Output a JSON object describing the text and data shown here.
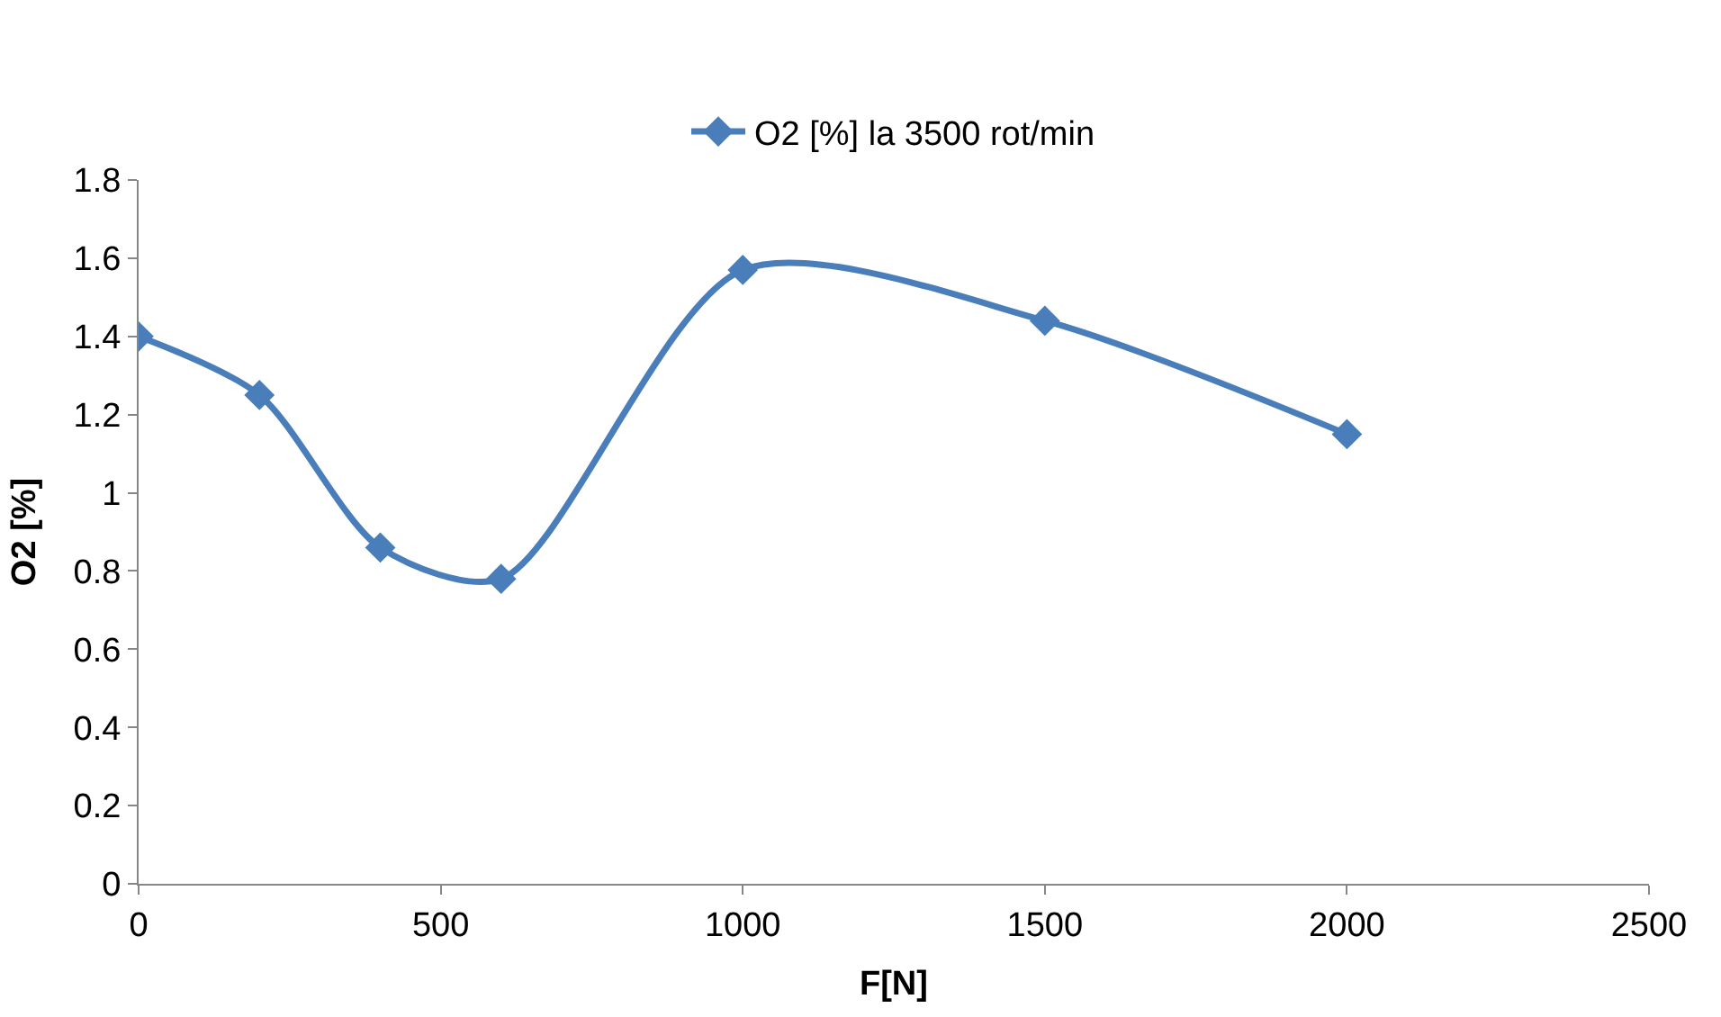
{
  "chart_data": {
    "type": "line",
    "xlabel": "F[N]",
    "ylabel": "O2 [%]",
    "x": [
      0,
      200,
      400,
      600,
      1000,
      1500,
      2000
    ],
    "series": [
      {
        "name": "O2 [%] la 3500 rot/min",
        "color": "#4a7ebb",
        "values": [
          1.4,
          1.25,
          0.86,
          0.78,
          1.57,
          1.44,
          1.15
        ]
      }
    ],
    "xlim": [
      0,
      2500
    ],
    "xticks": [
      0,
      500,
      1000,
      1500,
      2000,
      2500
    ],
    "ylim": [
      0,
      1.8
    ],
    "yticks": [
      0,
      {
        "value": 0.2,
        "label": "0.2"
      },
      {
        "value": 0.4,
        "label": "0.4"
      },
      {
        "value": 0.6,
        "label": "0.6"
      },
      {
        "value": 0.8,
        "label": "0.8"
      },
      1,
      {
        "value": 1.2,
        "label": "1.2"
      },
      {
        "value": 1.4,
        "label": "1.4"
      },
      {
        "value": 1.6,
        "label": "1.6"
      },
      {
        "value": 1.8,
        "label": "1.8"
      }
    ],
    "legend": "top",
    "marker": "diamond",
    "line_style": "solid"
  }
}
